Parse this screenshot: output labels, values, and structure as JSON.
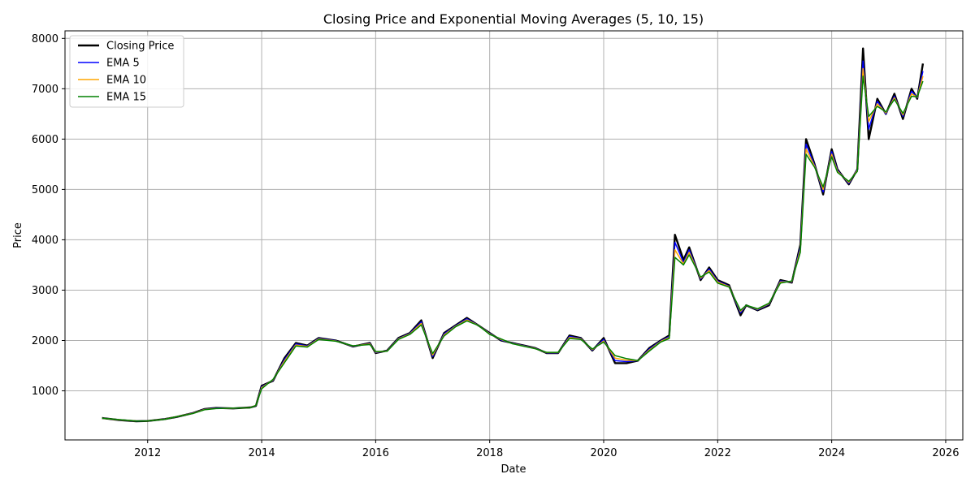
{
  "chart_data": {
    "type": "line",
    "title": "Closing Price and Exponential Moving Averages (5, 10, 15)",
    "xlabel": "Date",
    "ylabel": "Price",
    "xlim": [
      2010.55,
      2026.3
    ],
    "ylim": [
      25,
      8150
    ],
    "x_ticks": [
      {
        "value": 2012,
        "label": "2012"
      },
      {
        "value": 2014,
        "label": "2014"
      },
      {
        "value": 2016,
        "label": "2016"
      },
      {
        "value": 2018,
        "label": "2018"
      },
      {
        "value": 2020,
        "label": "2020"
      },
      {
        "value": 2022,
        "label": "2022"
      },
      {
        "value": 2024,
        "label": "2024"
      },
      {
        "value": 2026,
        "label": "2026"
      }
    ],
    "y_ticks": [
      {
        "value": 1000,
        "label": "1000"
      },
      {
        "value": 2000,
        "label": "2000"
      },
      {
        "value": 3000,
        "label": "3000"
      },
      {
        "value": 4000,
        "label": "4000"
      },
      {
        "value": 5000,
        "label": "5000"
      },
      {
        "value": 6000,
        "label": "6000"
      },
      {
        "value": 7000,
        "label": "7000"
      },
      {
        "value": 8000,
        "label": "8000"
      }
    ],
    "grid": true,
    "legend_position": "top-left",
    "x": [
      2011.2,
      2011.5,
      2011.8,
      2012.0,
      2012.3,
      2012.5,
      2012.8,
      2013.0,
      2013.2,
      2013.5,
      2013.8,
      2013.9,
      2014.0,
      2014.2,
      2014.4,
      2014.6,
      2014.8,
      2015.0,
      2015.3,
      2015.6,
      2015.9,
      2016.0,
      2016.2,
      2016.4,
      2016.6,
      2016.8,
      2017.0,
      2017.2,
      2017.4,
      2017.6,
      2017.8,
      2018.0,
      2018.2,
      2018.4,
      2018.6,
      2018.8,
      2019.0,
      2019.2,
      2019.4,
      2019.6,
      2019.8,
      2020.0,
      2020.2,
      2020.4,
      2020.6,
      2020.8,
      2021.0,
      2021.15,
      2021.25,
      2021.4,
      2021.5,
      2021.7,
      2021.85,
      2022.0,
      2022.2,
      2022.4,
      2022.5,
      2022.7,
      2022.9,
      2023.1,
      2023.3,
      2023.45,
      2023.55,
      2023.7,
      2023.85,
      2024.0,
      2024.1,
      2024.3,
      2024.45,
      2024.55,
      2024.65,
      2024.8,
      2024.95,
      2025.1,
      2025.25,
      2025.4,
      2025.5,
      2025.6
    ],
    "series": [
      {
        "name": "Closing Price",
        "color": "#000000",
        "width": 2.4,
        "values": [
          460,
          420,
          395,
          400,
          440,
          480,
          560,
          640,
          660,
          650,
          670,
          700,
          1100,
          1200,
          1650,
          1950,
          1900,
          2050,
          2000,
          1880,
          1950,
          1750,
          1800,
          2050,
          2150,
          2400,
          1650,
          2150,
          2300,
          2450,
          2300,
          2150,
          2000,
          1950,
          1900,
          1850,
          1750,
          1750,
          2100,
          2050,
          1800,
          2050,
          1550,
          1550,
          1600,
          1850,
          2000,
          2100,
          4100,
          3600,
          3850,
          3200,
          3450,
          3200,
          3100,
          2500,
          2700,
          2600,
          2700,
          3200,
          3150,
          3900,
          6000,
          5500,
          4900,
          5800,
          5400,
          5100,
          5400,
          7800,
          6000,
          6800,
          6500,
          6900,
          6400,
          7000,
          6800,
          7500
        ]
      },
      {
        "name": "EMA 5",
        "color": "#0000ff",
        "width": 1.5,
        "values": [
          458,
          422,
          397,
          401,
          438,
          482,
          558,
          635,
          655,
          652,
          668,
          705,
          1080,
          1210,
          1620,
          1930,
          1890,
          2040,
          1995,
          1885,
          1940,
          1760,
          1795,
          2040,
          2140,
          2370,
          1680,
          2130,
          2290,
          2430,
          2300,
          2140,
          2010,
          1945,
          1895,
          1845,
          1755,
          1755,
          2080,
          2040,
          1810,
          2020,
          1600,
          1580,
          1600,
          1830,
          1990,
          2080,
          3950,
          3550,
          3800,
          3220,
          3420,
          3180,
          3080,
          2550,
          2700,
          2610,
          2720,
          3180,
          3160,
          3850,
          5900,
          5480,
          4950,
          5750,
          5380,
          5120,
          5400,
          7550,
          6200,
          6750,
          6500,
          6850,
          6450,
          6950,
          6820,
          7350
        ]
      },
      {
        "name": "EMA 10",
        "color": "#ffa500",
        "width": 1.5,
        "values": [
          456,
          425,
          399,
          402,
          436,
          484,
          555,
          630,
          650,
          654,
          666,
          710,
          1060,
          1220,
          1590,
          1910,
          1880,
          2030,
          1990,
          1890,
          1930,
          1770,
          1790,
          2030,
          2130,
          2340,
          1710,
          2110,
          2280,
          2410,
          2300,
          2130,
          2020,
          1940,
          1890,
          1840,
          1760,
          1760,
          2060,
          2030,
          1820,
          1990,
          1650,
          1610,
          1600,
          1810,
          1980,
          2060,
          3800,
          3520,
          3750,
          3240,
          3390,
          3160,
          3070,
          2580,
          2700,
          2620,
          2730,
          3160,
          3170,
          3800,
          5800,
          5460,
          5000,
          5700,
          5360,
          5140,
          5380,
          7400,
          6350,
          6700,
          6520,
          6820,
          6480,
          6900,
          6830,
          7250
        ]
      },
      {
        "name": "EMA 15",
        "color": "#008000",
        "width": 1.5,
        "values": [
          455,
          428,
          401,
          403,
          434,
          485,
          552,
          625,
          648,
          655,
          664,
          712,
          1040,
          1230,
          1560,
          1890,
          1870,
          2020,
          1985,
          1895,
          1920,
          1780,
          1785,
          2020,
          2120,
          2310,
          1740,
          2090,
          2270,
          2390,
          2300,
          2120,
          2030,
          1935,
          1885,
          1835,
          1765,
          1765,
          2040,
          2020,
          1830,
          1970,
          1700,
          1640,
          1600,
          1790,
          1970,
          2040,
          3650,
          3500,
          3700,
          3260,
          3360,
          3140,
          3060,
          2600,
          2700,
          2630,
          2740,
          3140,
          3180,
          3750,
          5700,
          5440,
          5050,
          5650,
          5340,
          5160,
          5360,
          7250,
          6450,
          6650,
          6540,
          6790,
          6510,
          6850,
          6840,
          7150
        ]
      }
    ]
  }
}
